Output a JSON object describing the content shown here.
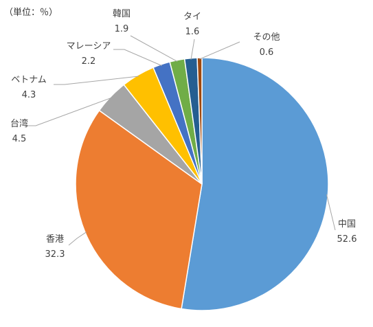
{
  "chart_data": {
    "type": "pie",
    "unit_label": "（単位：％）",
    "categories": [
      "中国",
      "香港",
      "台湾",
      "ベトナム",
      "マレーシア",
      "韓国",
      "タイ",
      "その他"
    ],
    "values": [
      52.6,
      32.3,
      4.5,
      4.3,
      2.2,
      1.9,
      1.6,
      0.6
    ],
    "colors": [
      "#5b9bd5",
      "#ed7d31",
      "#a5a5a5",
      "#ffc000",
      "#4472c4",
      "#70ad47",
      "#255e91",
      "#9e480e"
    ],
    "start": "top",
    "direction": "clockwise"
  }
}
